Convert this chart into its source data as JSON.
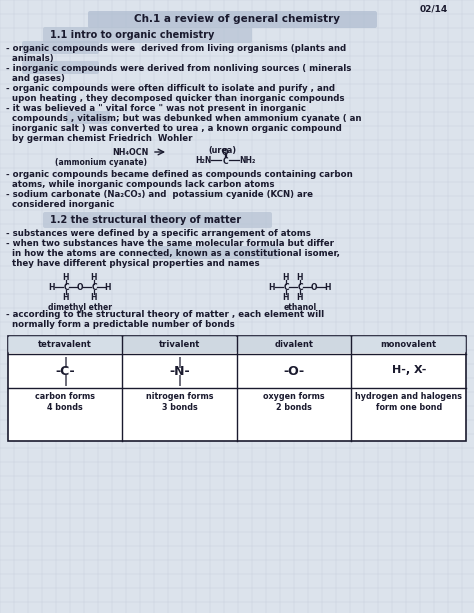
{
  "bg_color": "#dce3ec",
  "grid_color": "#c4cdd9",
  "paper_color": "#dce3ec",
  "text_color": "#1a1a2e",
  "highlight_title": "#b0bdd0",
  "highlight_sec": "#b8c4d4",
  "highlight_inline": "#b8c4d4",
  "date": "02/14",
  "title": "Ch.1 a review of general chemistry",
  "sec1": "1.1 intro to organic chemistry",
  "sec2": "1.2 the structural theory of matter",
  "figw": 4.74,
  "figh": 6.13,
  "dpi": 100
}
